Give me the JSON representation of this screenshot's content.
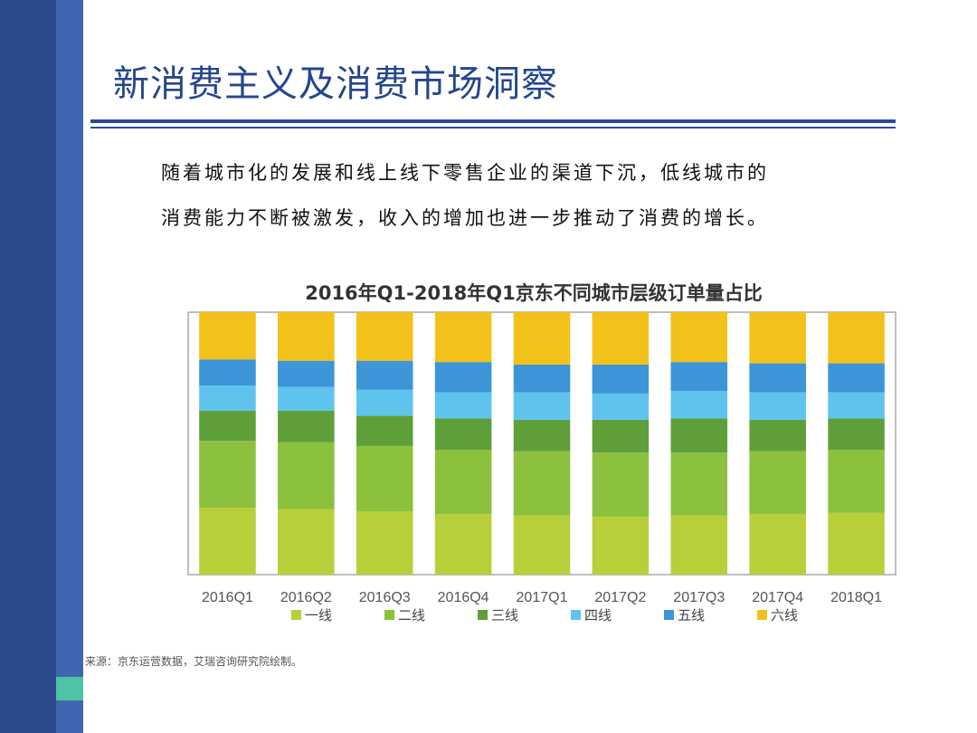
{
  "slide": {
    "title": "新消费主义及消费市场洞察",
    "paragraph_line1": "随着城市化的发展和线上线下零售企业的渠道下沉，低线城市的",
    "paragraph_line2": "消费能力不断被激发，收入的增加也进一步推动了消费的增长。",
    "source": "来源：京东运营数据，艾瑞咨询研究院绘制。"
  },
  "colors": {
    "sidebar_dark": "#2a4a8c",
    "sidebar_light": "#3f66b0",
    "accent_green": "#4fc3a6",
    "title_blue": "#26468c"
  },
  "chart_data": {
    "type": "bar",
    "stacked": true,
    "percent": true,
    "title": "2016年Q1-2018年Q1京东不同城市层级订单量占比",
    "categories": [
      "2016Q1",
      "2016Q2",
      "2016Q3",
      "2016Q4",
      "2017Q1",
      "2017Q2",
      "2017Q3",
      "2017Q4",
      "2018Q1"
    ],
    "series": [
      {
        "name": "一线",
        "color": "#b8cf3a",
        "values": [
          25.5,
          25,
          24,
          23,
          22.5,
          22,
          22.5,
          23,
          23.5
        ]
      },
      {
        "name": "二线",
        "color": "#8cc13e",
        "values": [
          25.5,
          25.5,
          25,
          24.5,
          24.5,
          24.5,
          24,
          24,
          24
        ]
      },
      {
        "name": "三线",
        "color": "#5e9f3a",
        "values": [
          11.5,
          12,
          11.5,
          12,
          12,
          12.5,
          13,
          12,
          12
        ]
      },
      {
        "name": "四线",
        "color": "#5ec4ee",
        "values": [
          9.5,
          9,
          10,
          10,
          10.5,
          10,
          10.5,
          10.5,
          10
        ]
      },
      {
        "name": "五线",
        "color": "#3d95d8",
        "values": [
          10,
          10,
          11,
          11.5,
          10.5,
          11,
          11,
          11,
          11
        ]
      },
      {
        "name": "六线",
        "color": "#f2c21a",
        "values": [
          18,
          18.5,
          18.5,
          19,
          20,
          20,
          19,
          19.5,
          19.5
        ]
      }
    ],
    "ylim": [
      0,
      100
    ],
    "grid": false,
    "legend_position": "bottom"
  }
}
